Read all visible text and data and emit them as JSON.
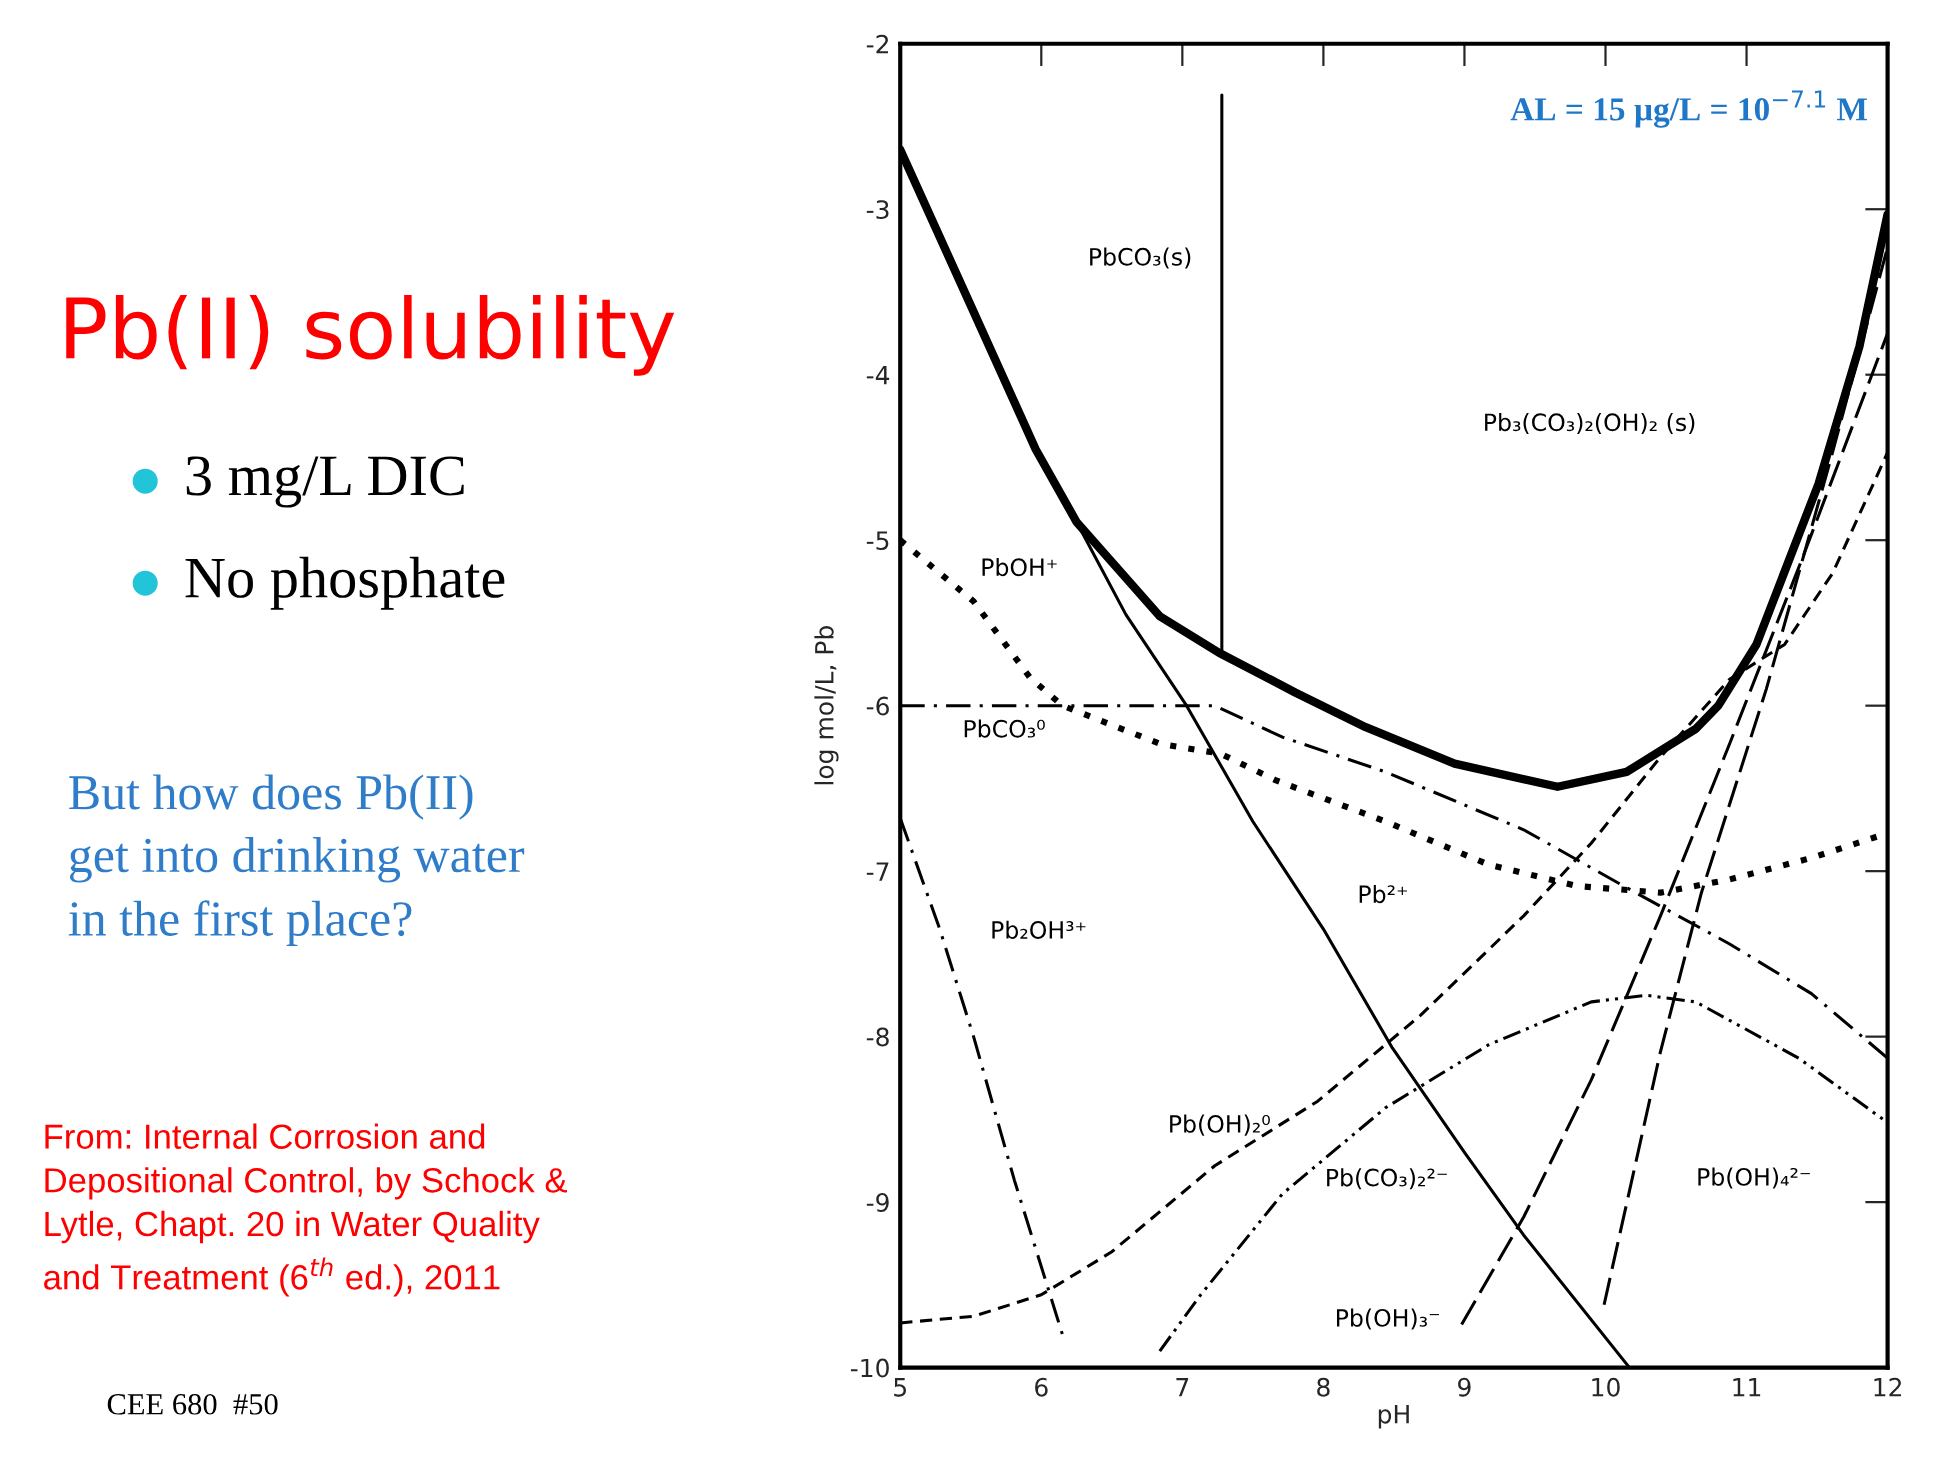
{
  "chart_data": {
    "type": "line",
    "title": "Pb(II) solubility",
    "xlabel": "pH",
    "ylabel": "log mol/L, Pb",
    "xlim": [
      5,
      12
    ],
    "ylim": [
      -10,
      -2
    ],
    "xticks": [
      5,
      6,
      7,
      8,
      9,
      10,
      11,
      12
    ],
    "yticks": [
      -10,
      -9,
      -8,
      -7,
      -6,
      -5,
      -4,
      -3,
      -2
    ],
    "grid": false,
    "legend": false,
    "marker": "none",
    "series": [
      {
        "color": "#000000",
        "line_style": "solid",
        "x": [
          5,
          5.52,
          5.96,
          6.25,
          6.84,
          7.26,
          7.8,
          8.3,
          8.93,
          9.66,
          10.15,
          10.64,
          10.8,
          11.07,
          11.51,
          11.8,
          12
        ],
        "values": [
          -2.64,
          -3.62,
          -4.45,
          -4.89,
          -5.46,
          -5.68,
          -5.92,
          -6.13,
          -6.35,
          -6.49,
          -6.4,
          -6.14,
          -6.0,
          -5.63,
          -4.66,
          -3.83,
          -3.03
        ]
      },
      {
        "color": "#000000",
        "line_style": "solid",
        "x": [
          7.28,
          7.28
        ],
        "values": [
          -2.31,
          -5.67
        ]
      },
      {
        "name": "Pb²⁺",
        "color": "#000000",
        "line_style": "solid",
        "x": [
          5,
          5.52,
          5.96,
          6.25,
          6.6,
          7.03,
          7.5,
          8.0,
          8.49,
          9.0,
          9.42,
          10.17
        ],
        "values": [
          -2.64,
          -3.62,
          -4.45,
          -4.89,
          -5.45,
          -6.0,
          -6.7,
          -7.35,
          -8.07,
          -8.7,
          -9.2,
          -10.0
        ]
      },
      {
        "name": "PbOH⁺",
        "color": "#000000",
        "line_style": "dotted",
        "x": [
          5,
          5.52,
          5.92,
          6.15,
          6.84,
          7.27,
          7.66,
          8.44,
          9.17,
          9.8,
          10.39,
          10.88,
          11.46,
          11.93
        ],
        "values": [
          -5.0,
          -5.37,
          -5.83,
          -6.0,
          -6.23,
          -6.29,
          -6.45,
          -6.7,
          -6.96,
          -7.09,
          -7.13,
          -7.05,
          -6.92,
          -6.79
        ]
      },
      {
        "name": "PbCO₃⁰",
        "color": "#000000",
        "line_style": "dashdot",
        "x": [
          5,
          6.0,
          7.23,
          7.71,
          8.44,
          9.42,
          10.15,
          10.88,
          11.46,
          12
        ],
        "values": [
          -6.0,
          -6.0,
          -6.0,
          -6.19,
          -6.4,
          -6.75,
          -7.1,
          -7.44,
          -7.74,
          -8.13
        ]
      },
      {
        "name": "Pb(CO₃)₂²⁻",
        "color": "#000000",
        "line_style": "dashdotdot",
        "x": [
          6.84,
          7.13,
          7.71,
          8.44,
          9.17,
          9.9,
          10.29,
          10.64,
          11.37,
          12
        ],
        "values": [
          -9.9,
          -9.56,
          -8.95,
          -8.43,
          -8.05,
          -7.79,
          -7.75,
          -7.79,
          -8.13,
          -8.52
        ]
      },
      {
        "name": "Pb(OH)₂⁰",
        "color": "#000000",
        "line_style": "dashed",
        "x": [
          5,
          5.52,
          6.0,
          6.5,
          7.23,
          7.96,
          8.69,
          9.42,
          9.9,
          10.39,
          10.88,
          11.27,
          11.61,
          12
        ],
        "values": [
          -9.73,
          -9.69,
          -9.56,
          -9.3,
          -8.78,
          -8.39,
          -7.87,
          -7.27,
          -6.83,
          -6.31,
          -5.84,
          -5.63,
          -5.2,
          -4.47
        ]
      },
      {
        "name": "Pb(OH)₃⁻",
        "color": "#000000",
        "line_style": "longdash",
        "x": [
          8.98,
          9.42,
          9.9,
          10.39,
          10.88,
          11.4,
          12
        ],
        "values": [
          -9.74,
          -9.09,
          -8.26,
          -7.27,
          -6.23,
          -5.1,
          -3.75
        ]
      },
      {
        "name": "Pb(OH)₄²⁻",
        "color": "#000000",
        "line_style": "longdash",
        "x": [
          9.99,
          10.39,
          10.68,
          11.14,
          11.6,
          12
        ],
        "values": [
          -9.62,
          -8.09,
          -7.13,
          -5.9,
          -4.5,
          -3.23
        ]
      },
      {
        "name": "Pb₂OH³⁺",
        "color": "#000000",
        "line_style": "dashdot",
        "x": [
          5,
          5.28,
          5.52,
          5.81,
          6.15
        ],
        "values": [
          -6.68,
          -7.35,
          -8.0,
          -8.87,
          -9.8
        ]
      }
    ],
    "annotations": [
      "PbCO₃(s)",
      "Pb₃(CO₃)₂(OH)₂ (s)",
      "AL = 15 µg/L = 10$^{−7.1}$ M",
      "3 mg/L DIC",
      "No phosphate",
      "But how does Pb(II)\nget into drinking water\nin the first place?",
      "From: Internal Corrosion and\nDepositional Control, by Schock &\nLytle, Chapt. 20 in Water Quality\nand Treatment (6$^{th}$ ed.), 2011",
      "CEE 680  #50"
    ]
  }
}
